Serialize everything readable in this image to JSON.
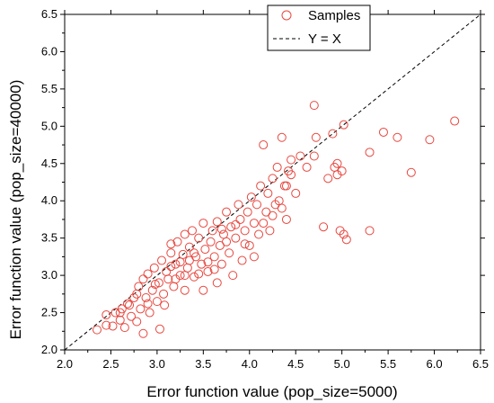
{
  "chart_data": {
    "type": "scatter",
    "xlabel": "Error function value (pop_size=5000)",
    "ylabel": "Error function value (pop_size=40000)",
    "xlim": [
      2.0,
      6.5
    ],
    "ylim": [
      2.0,
      6.5
    ],
    "x_ticks": [
      "2.0",
      "2.5",
      "3.0",
      "3.5",
      "4.0",
      "4.5",
      "5.0",
      "5.5",
      "6.0",
      "6.5"
    ],
    "y_ticks": [
      "2.0",
      "2.5",
      "3.0",
      "3.5",
      "4.0",
      "4.5",
      "5.0",
      "5.5",
      "6.0",
      "6.5"
    ],
    "legend": {
      "position": "top-center",
      "entries": [
        "Samples",
        "Y = X"
      ]
    },
    "grid": false,
    "colors": {
      "samples": "#e8473f",
      "reference_line": "#000000"
    },
    "series": [
      {
        "name": "Samples",
        "marker": "open-circle",
        "points": [
          [
            2.35,
            2.27
          ],
          [
            2.45,
            2.33
          ],
          [
            2.45,
            2.47
          ],
          [
            2.52,
            2.32
          ],
          [
            2.55,
            2.5
          ],
          [
            2.6,
            2.4
          ],
          [
            2.62,
            2.55
          ],
          [
            2.65,
            2.3
          ],
          [
            2.7,
            2.6
          ],
          [
            2.72,
            2.45
          ],
          [
            2.75,
            2.7
          ],
          [
            2.78,
            2.38
          ],
          [
            2.8,
            2.85
          ],
          [
            2.82,
            2.55
          ],
          [
            2.85,
            2.22
          ],
          [
            2.85,
            2.95
          ],
          [
            2.88,
            2.7
          ],
          [
            2.9,
            3.02
          ],
          [
            2.92,
            2.5
          ],
          [
            2.95,
            2.8
          ],
          [
            2.97,
            3.1
          ],
          [
            3.0,
            2.65
          ],
          [
            3.02,
            2.9
          ],
          [
            3.03,
            2.28
          ],
          [
            3.05,
            3.2
          ],
          [
            3.07,
            2.75
          ],
          [
            3.1,
            3.05
          ],
          [
            3.12,
            2.95
          ],
          [
            3.15,
            3.3
          ],
          [
            3.15,
            3.42
          ],
          [
            3.18,
            2.85
          ],
          [
            3.2,
            3.15
          ],
          [
            3.22,
            3.45
          ],
          [
            3.25,
            3.0
          ],
          [
            3.28,
            3.28
          ],
          [
            3.3,
            2.8
          ],
          [
            3.3,
            3.55
          ],
          [
            3.33,
            3.1
          ],
          [
            3.35,
            3.38
          ],
          [
            3.38,
            3.6
          ],
          [
            3.4,
            2.98
          ],
          [
            3.42,
            3.25
          ],
          [
            3.45,
            3.5
          ],
          [
            3.48,
            3.15
          ],
          [
            3.5,
            3.7
          ],
          [
            3.5,
            2.8
          ],
          [
            3.52,
            3.35
          ],
          [
            3.55,
            3.05
          ],
          [
            3.58,
            3.45
          ],
          [
            3.6,
            3.6
          ],
          [
            3.62,
            3.25
          ],
          [
            3.65,
            2.9
          ],
          [
            3.65,
            3.72
          ],
          [
            3.68,
            3.4
          ],
          [
            3.7,
            3.15
          ],
          [
            3.72,
            3.55
          ],
          [
            3.75,
            3.85
          ],
          [
            3.78,
            3.3
          ],
          [
            3.8,
            3.65
          ],
          [
            3.82,
            3.0
          ],
          [
            3.85,
            3.5
          ],
          [
            3.88,
            3.95
          ],
          [
            3.9,
            3.75
          ],
          [
            3.92,
            3.2
          ],
          [
            3.95,
            3.6
          ],
          [
            3.98,
            3.85
          ],
          [
            4.0,
            3.4
          ],
          [
            4.02,
            4.05
          ],
          [
            4.05,
            3.7
          ],
          [
            4.08,
            3.95
          ],
          [
            4.1,
            3.55
          ],
          [
            4.12,
            4.2
          ],
          [
            4.15,
            4.75
          ],
          [
            4.18,
            3.85
          ],
          [
            4.2,
            4.1
          ],
          [
            4.22,
            3.6
          ],
          [
            4.25,
            4.3
          ],
          [
            4.28,
            3.95
          ],
          [
            4.3,
            4.45
          ],
          [
            4.32,
            4.0
          ],
          [
            4.35,
            4.85
          ],
          [
            4.38,
            4.2
          ],
          [
            4.4,
            3.75
          ],
          [
            4.42,
            4.4
          ],
          [
            4.45,
            4.55
          ],
          [
            4.5,
            4.1
          ],
          [
            4.55,
            4.6
          ],
          [
            4.62,
            4.45
          ],
          [
            4.7,
            5.28
          ],
          [
            4.72,
            4.85
          ],
          [
            4.7,
            4.6
          ],
          [
            4.8,
            3.65
          ],
          [
            4.85,
            4.3
          ],
          [
            4.9,
            4.9
          ],
          [
            4.92,
            4.45
          ],
          [
            4.95,
            4.5
          ],
          [
            4.95,
            4.35
          ],
          [
            4.98,
            3.6
          ],
          [
            5.0,
            4.4
          ],
          [
            5.02,
            5.02
          ],
          [
            5.02,
            3.55
          ],
          [
            5.05,
            3.48
          ],
          [
            5.3,
            4.65
          ],
          [
            5.3,
            3.6
          ],
          [
            5.45,
            4.92
          ],
          [
            5.6,
            4.85
          ],
          [
            5.75,
            4.38
          ],
          [
            5.95,
            4.82
          ],
          [
            6.22,
            5.07
          ],
          [
            3.08,
            2.6
          ],
          [
            3.55,
            3.18
          ],
          [
            3.62,
            3.08
          ],
          [
            3.35,
            3.2
          ],
          [
            3.45,
            3.02
          ],
          [
            3.15,
            3.12
          ],
          [
            3.25,
            3.18
          ],
          [
            2.98,
            2.88
          ],
          [
            2.68,
            2.62
          ],
          [
            2.6,
            2.5
          ],
          [
            3.75,
            3.45
          ],
          [
            3.95,
            3.42
          ],
          [
            4.05,
            3.25
          ],
          [
            3.85,
            3.68
          ],
          [
            3.7,
            3.62
          ],
          [
            4.25,
            3.8
          ],
          [
            4.15,
            3.7
          ],
          [
            4.35,
            3.9
          ],
          [
            4.45,
            4.35
          ],
          [
            4.4,
            4.2
          ],
          [
            3.3,
            3.0
          ],
          [
            3.4,
            3.3
          ],
          [
            3.2,
            2.95
          ],
          [
            2.9,
            2.62
          ],
          [
            2.78,
            2.75
          ]
        ]
      },
      {
        "name": "Y = X",
        "line": "dashed",
        "points": [
          [
            2.0,
            2.0
          ],
          [
            6.5,
            6.5
          ]
        ]
      }
    ]
  }
}
